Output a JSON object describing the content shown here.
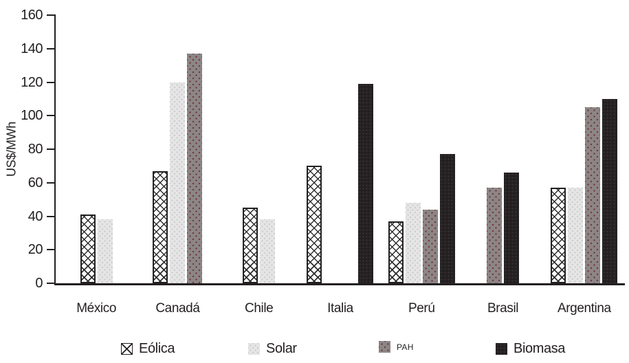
{
  "chart_data": {
    "type": "bar",
    "title": "",
    "xlabel": "",
    "ylabel": "US$/MWh",
    "ylim": [
      0,
      160
    ],
    "yticks": [
      0,
      20,
      40,
      60,
      80,
      100,
      120,
      140,
      160
    ],
    "grid": false,
    "legend_position": "bottom",
    "categories": [
      "México",
      "Canadá",
      "Chile",
      "Italia",
      "Perú",
      "Brasil",
      "Argentina"
    ],
    "series": [
      {
        "name": "Eólica",
        "key": "eolica",
        "values": [
          41,
          67,
          45,
          70,
          37,
          null,
          57
        ]
      },
      {
        "name": "Solar",
        "key": "solar",
        "values": [
          38,
          120,
          38,
          null,
          48,
          null,
          57
        ]
      },
      {
        "name": "PAH",
        "key": "pah",
        "values": [
          null,
          137,
          null,
          null,
          44,
          57,
          105
        ]
      },
      {
        "name": "Biomasa",
        "key": "biomasa",
        "values": [
          null,
          null,
          null,
          119,
          77,
          66,
          110
        ]
      }
    ]
  },
  "legend": {
    "items": [
      {
        "label": "Eólica",
        "key": "eolica",
        "swatch": "crosshatch-swatch-icon"
      },
      {
        "label": "Solar",
        "key": "solar",
        "swatch": "light-gray-swatch-icon"
      },
      {
        "label": "PAH",
        "key": "pah",
        "swatch": "gray-dotted-swatch-icon"
      },
      {
        "label": "Biomasa",
        "key": "biomasa",
        "swatch": "black-swatch-icon"
      }
    ]
  },
  "colors": {
    "axis": "#231f20",
    "text": "#231f20",
    "solar_fill": "#e6e5e5",
    "pah_fill": "#8b8687",
    "pah_dot": "#7d3333",
    "biomasa_fill": "#242021",
    "eolica_pattern": "#2f2f2f"
  }
}
